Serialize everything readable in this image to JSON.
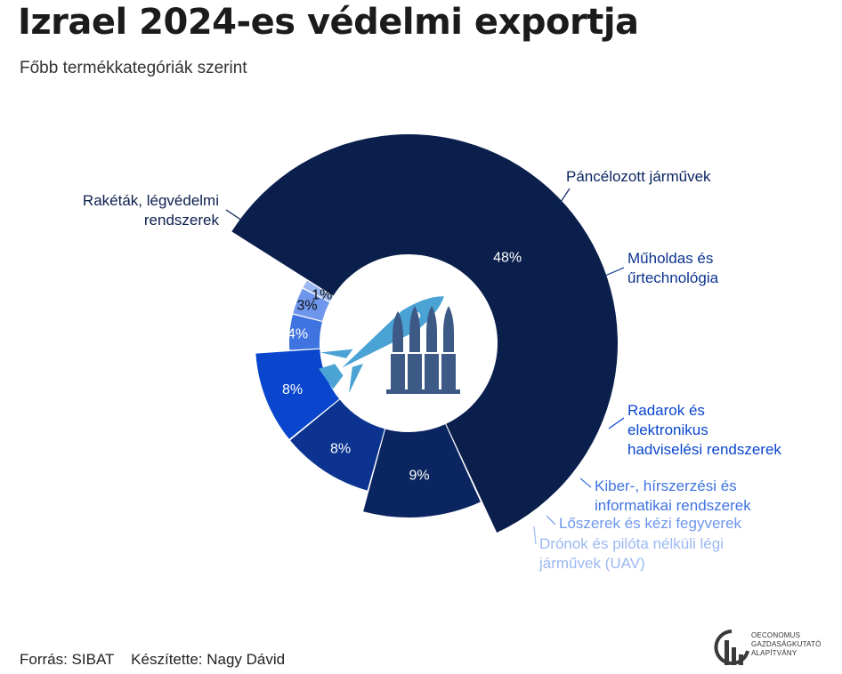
{
  "title": "Izrael 2024-es védelmi exportja",
  "subtitle": "Főbb termékkategóriák szerint",
  "chart_data": {
    "type": "pie",
    "categories": [
      "Rakéták, légvédelmi rendszerek",
      "Páncélozott járművek",
      "Műholdas és űrtechnológia",
      "Radarok és elektronikus hadviselési rendszerek",
      "Kiber-, hírszerzési és informatikai rendszerek",
      "Lőszerek és kézi fegyverek",
      "Drónok és pilóta nélküli légi járművek (UAV)"
    ],
    "values": [
      48,
      9,
      8,
      8,
      4,
      3,
      1
    ],
    "value_labels": [
      "48%",
      "9%",
      "8%",
      "8%",
      "4%",
      "3%",
      "1%"
    ],
    "colors": [
      "#0b1f4d",
      "#0b2561",
      "#0b338f",
      "#0a46cd",
      "#3f73e0",
      "#6e96ec",
      "#9bb8f2"
    ],
    "label_colors": [
      "#0b1f4d",
      "#0b2561",
      "#0b338f",
      "#0a46cd",
      "#3f73e0",
      "#6e96ec",
      "#9bb8f2"
    ],
    "label_lines": [
      [
        "Rakéták, légvédelmi",
        "rendszerek"
      ],
      [
        "Páncélozott járművek"
      ],
      [
        "Műholdas és",
        "űrtechnológia"
      ],
      [
        "Radarok és",
        "elektronikus",
        "hadviselési rendszerek"
      ],
      [
        "Kiber-, hírszerzési és",
        "informatikai rendszerek"
      ],
      [
        "Lőszerek és kézi fegyverek"
      ],
      [
        "Drónok és pilóta nélküli légi",
        "járművek (UAV)"
      ]
    ],
    "center_icon": "rocket-and-ammunition-icon"
  },
  "footer": {
    "source": "Forrás: SIBAT",
    "author": "Készítette: Nagy Dávid"
  },
  "logo": {
    "icon": "oeconomus-logo-icon",
    "lines": [
      "OECONOMUS",
      "GAZDASÁGKUTATÓ",
      "ALAPÍTVÁNY"
    ]
  }
}
